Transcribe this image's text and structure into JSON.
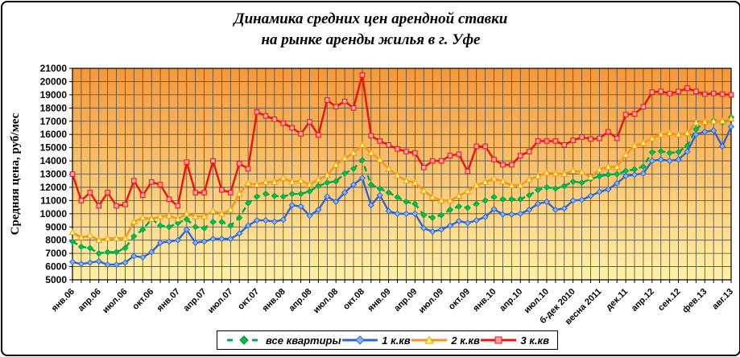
{
  "title_line1": "Динамика средних цен арендной ставки",
  "title_line2": "на рынке аренды жилья в г. Уфе",
  "chart_data": {
    "type": "line",
    "title": "Динамика средних цен арендной ставки на рынке аренды жилья в г. Уфе",
    "ylabel": "Средняя цена, руб/мес",
    "xlabel": "",
    "ylim": [
      5000,
      21000
    ],
    "ytick_step": 1000,
    "grid": true,
    "legend_position": "bottom",
    "n_points": 76,
    "label_every": 3,
    "x_labels_visible": [
      "янв.06",
      "апр.06",
      "июл.06",
      "окт.06",
      "янв.07",
      "апр.07",
      "июл.07",
      "окт.07",
      "янв.08",
      "апр.08",
      "июл.08",
      "окт.08",
      "янв.09",
      "апр.09",
      "июл.09",
      "окт.09",
      "янв.10",
      "апр.10",
      "июл.10",
      "б-дек 2010",
      "весна 2011",
      "дек.11",
      "апр.12",
      "сен.12",
      "фев.13",
      "авг.13"
    ],
    "plot_bg_gradient_top": "#F69838",
    "plot_bg_gradient_bottom": "#FFF2A8",
    "grid_color": "#4a4a4a",
    "series": [
      {
        "name": "все квартиры",
        "color": "#00A550",
        "marker": "diamond",
        "marker_fill": "#00C040",
        "dashed": true,
        "values": [
          7900,
          7500,
          7400,
          7000,
          7100,
          7100,
          7400,
          8300,
          8800,
          9600,
          9100,
          9000,
          9300,
          9580,
          9000,
          8900,
          9380,
          9380,
          9100,
          9700,
          10800,
          11300,
          11500,
          11350,
          11300,
          11500,
          11500,
          11700,
          12100,
          12350,
          12450,
          13050,
          13400,
          14050,
          12200,
          11900,
          11600,
          11250,
          10900,
          10750,
          9900,
          9700,
          9900,
          10300,
          10550,
          10450,
          10750,
          11000,
          11270,
          11100,
          11100,
          11100,
          11400,
          11800,
          12000,
          11900,
          12100,
          12430,
          12350,
          12630,
          12830,
          12960,
          13000,
          13240,
          13360,
          13570,
          14650,
          14730,
          14600,
          14670,
          15140,
          16400,
          16900,
          17050,
          16900,
          17300
        ]
      },
      {
        "name": "1 к.кв",
        "color": "#2E64D9",
        "marker": "diamond",
        "marker_fill": "#7FB6F5",
        "dashed": false,
        "values": [
          6350,
          6200,
          6300,
          6400,
          6150,
          6150,
          6300,
          6800,
          6700,
          7100,
          7800,
          7900,
          8000,
          8800,
          7800,
          7900,
          8100,
          8100,
          8100,
          8500,
          9100,
          9500,
          9500,
          9400,
          9550,
          10650,
          10550,
          9850,
          10300,
          11300,
          10900,
          11600,
          12200,
          12700,
          10650,
          11400,
          10200,
          10000,
          10000,
          10000,
          8900,
          8650,
          8800,
          9100,
          9450,
          9300,
          9500,
          9750,
          10350,
          9950,
          9950,
          10000,
          10300,
          10750,
          10900,
          10300,
          10400,
          11000,
          11050,
          11350,
          11650,
          11850,
          12300,
          12850,
          12950,
          13050,
          14000,
          14100,
          14000,
          14100,
          14700,
          16000,
          16200,
          16300,
          15100,
          16600
        ]
      },
      {
        "name": "2 к.кв",
        "color": "#F7941D",
        "marker": "triangle",
        "marker_fill": "#FFFF66",
        "dashed": false,
        "values": [
          8600,
          8200,
          8350,
          8000,
          8150,
          8150,
          8150,
          9400,
          9700,
          9600,
          9800,
          9850,
          9600,
          10000,
          9800,
          9800,
          10200,
          10000,
          10300,
          11500,
          12300,
          12200,
          12400,
          12400,
          12700,
          12400,
          12500,
          12200,
          12600,
          12900,
          13700,
          14200,
          14600,
          15200,
          14600,
          14100,
          13400,
          12900,
          12500,
          12350,
          11750,
          11250,
          11000,
          11000,
          11350,
          11700,
          12150,
          12400,
          12650,
          12450,
          12150,
          12150,
          12600,
          12850,
          13100,
          13050,
          13000,
          13250,
          13150,
          12750,
          13350,
          13550,
          13550,
          14450,
          15150,
          15350,
          15700,
          16000,
          16100,
          16000,
          16100,
          16900,
          16950,
          17000,
          17000,
          17200
        ]
      },
      {
        "name": "3 к.кв",
        "color": "#EE1111",
        "marker": "square",
        "marker_fill": "#FF9AA8",
        "dashed": false,
        "values": [
          13000,
          11000,
          11600,
          10600,
          11600,
          10600,
          10700,
          12500,
          11400,
          12400,
          12200,
          11100,
          10600,
          13900,
          11600,
          11600,
          14000,
          11800,
          11600,
          13800,
          13400,
          17700,
          17400,
          17150,
          16850,
          16500,
          16050,
          16950,
          15950,
          18600,
          18100,
          18500,
          18000,
          20500,
          15900,
          15500,
          15200,
          14900,
          14700,
          14600,
          13500,
          14000,
          14000,
          14400,
          14500,
          13200,
          15100,
          15100,
          14100,
          13700,
          13700,
          14400,
          14700,
          15500,
          15500,
          15500,
          15200,
          15550,
          15800,
          15650,
          15700,
          16200,
          15700,
          17500,
          17550,
          18100,
          19200,
          19250,
          19100,
          19250,
          19500,
          19250,
          19050,
          19100,
          19050,
          19000
        ]
      }
    ]
  }
}
